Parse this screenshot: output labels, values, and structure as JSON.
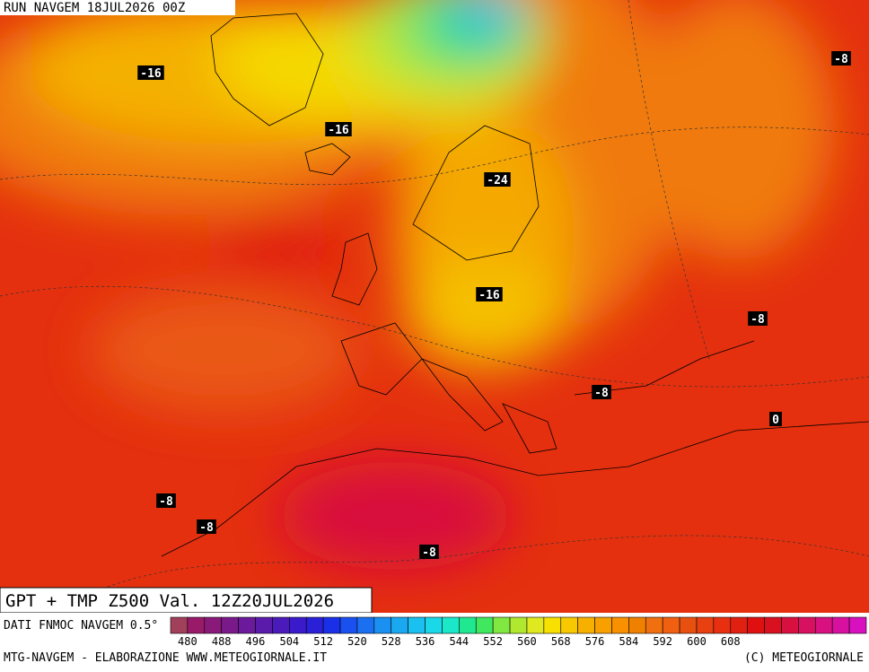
{
  "header": {
    "run": "RUN NAVGEM 18JUL2026 00Z"
  },
  "map": {
    "title": "GPT + TMP Z500 Val. 12Z20JUL2026",
    "temperature_labels": [
      "-16",
      "-16",
      "-24",
      "-16",
      "-8",
      "-8",
      "-8",
      "0",
      "-8",
      "-8",
      "-8"
    ]
  },
  "legend": {
    "source": "DATI FNMOC NAVGEM 0.5°",
    "labels": [
      480,
      488,
      496,
      504,
      512,
      520,
      528,
      536,
      544,
      552,
      560,
      568,
      576,
      584,
      592,
      600,
      608
    ],
    "colors": [
      "#a0405a",
      "#9a1a6a",
      "#8a1a7a",
      "#7a1a8a",
      "#6a1a9a",
      "#5a1aaa",
      "#4a1aba",
      "#3a1aca",
      "#2a20d8",
      "#1a30e8",
      "#1a50f0",
      "#1a70f0",
      "#1a90f0",
      "#1aa8f0",
      "#1ac0f0",
      "#1ad8e8",
      "#1ae8c8",
      "#20e890",
      "#40e860",
      "#80e840",
      "#b0e830",
      "#e0e820",
      "#f8e000",
      "#f8c800",
      "#f8b000",
      "#f8a000",
      "#f89000",
      "#f08000",
      "#f07010",
      "#f06010",
      "#e85010",
      "#e84010",
      "#e83010",
      "#e02010",
      "#e01010",
      "#d81020",
      "#d81040",
      "#d81060",
      "#d81080",
      "#d810a0",
      "#d810c0"
    ]
  },
  "footer": {
    "left": "MTG-NAVGEM - ELABORAZIONE WWW.METEOGIORNALE.IT",
    "right": "(C) METEOGIORNALE"
  }
}
